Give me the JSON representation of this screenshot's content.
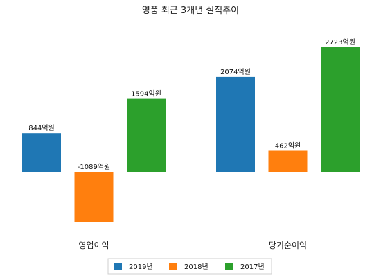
{
  "chart_data": {
    "type": "bar",
    "title": "영풍 최근 3개년 실적추이",
    "categories": [
      "영업이익",
      "당기순이익"
    ],
    "series": [
      {
        "name": "2019년",
        "color": "#1f77b4",
        "values": [
          844,
          2074
        ],
        "labels": [
          "844억원",
          "2074억원"
        ]
      },
      {
        "name": "2018년",
        "color": "#ff7f0e",
        "values": [
          -1089,
          462
        ],
        "labels": [
          "-1089억원",
          "462억원"
        ]
      },
      {
        "name": "2017년",
        "color": "#2ca02c",
        "values": [
          1594,
          2723
        ],
        "labels": [
          "1594억원",
          "2723억원"
        ]
      }
    ],
    "ylim": [
      -1089,
      2723
    ],
    "unit": "억원",
    "legend_position": "bottom-center",
    "grid": false
  }
}
